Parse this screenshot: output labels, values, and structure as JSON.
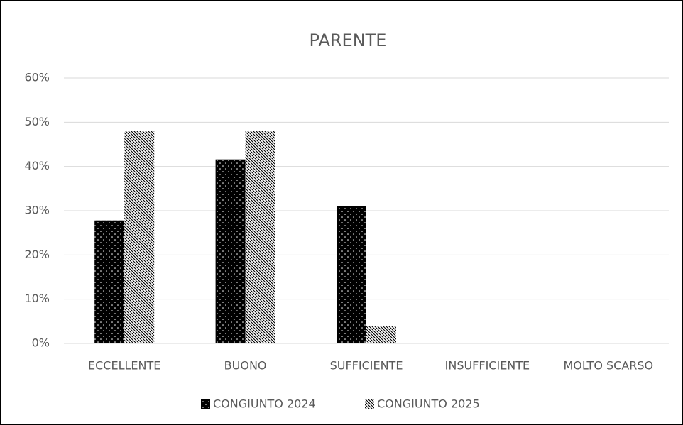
{
  "chart_data": {
    "type": "bar",
    "title": "PARENTE",
    "categories": [
      "ECCELLENTE",
      "BUONO",
      "SUFFICIENTE",
      "INSUFFICIENTE",
      "MOLTO SCARSO"
    ],
    "series": [
      {
        "name": "CONGIUNTO 2024",
        "color": "#000000",
        "pattern": "dots",
        "values": [
          27.8,
          41.6,
          31,
          0,
          0
        ]
      },
      {
        "name": "CONGIUNTO 2025",
        "color": "#000000",
        "pattern": "hatch",
        "values": [
          48,
          48,
          4,
          0,
          0
        ]
      }
    ],
    "ylim": [
      0,
      60
    ],
    "yticks": [
      {
        "value": 0,
        "label": "0%"
      },
      {
        "value": 10,
        "label": "10%"
      },
      {
        "value": 20,
        "label": "20%"
      },
      {
        "value": 30,
        "label": "30%"
      },
      {
        "value": 40,
        "label": "40%"
      },
      {
        "value": 50,
        "label": "50%"
      },
      {
        "value": 60,
        "label": "60%"
      }
    ],
    "grid": true,
    "legend": "bottom"
  }
}
